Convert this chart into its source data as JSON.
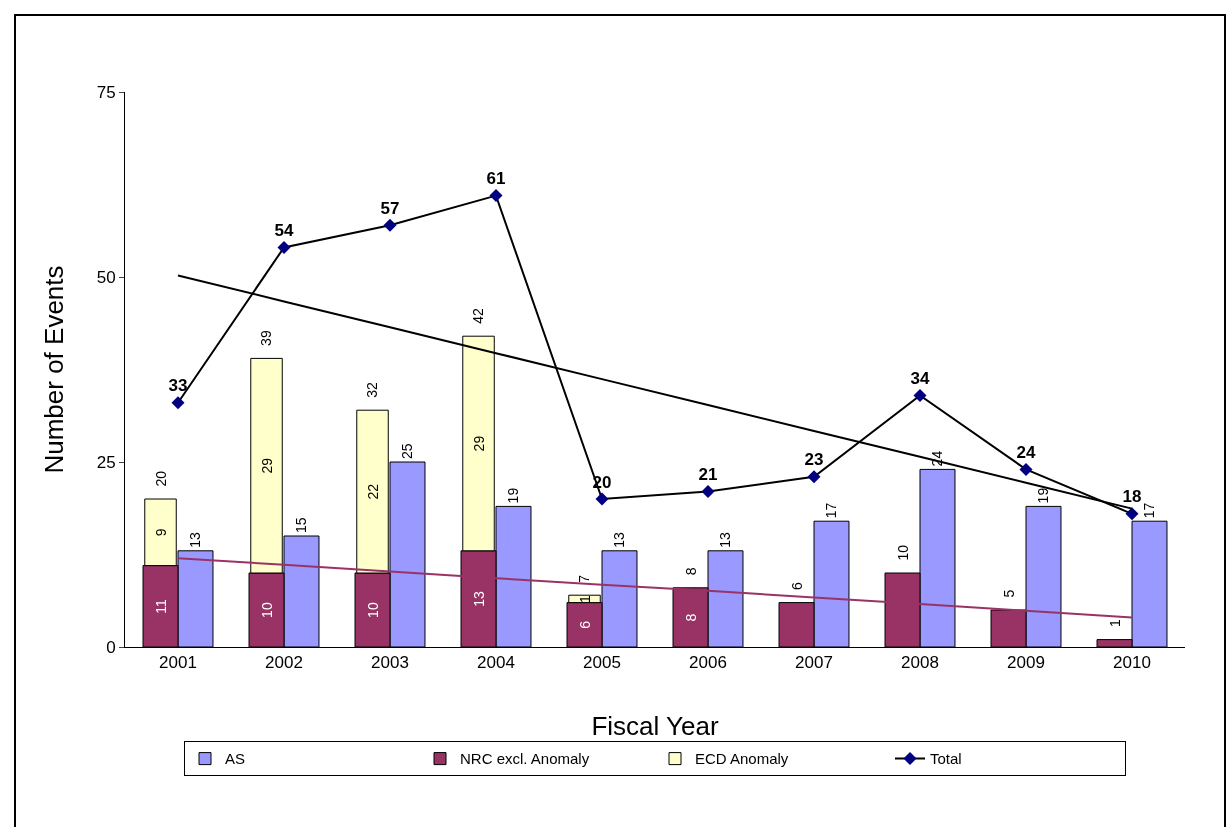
{
  "chart_data": {
    "type": "bar",
    "xlabel": "Fiscal Year",
    "ylabel": "Number of Events",
    "categories": [
      "2001",
      "2002",
      "2003",
      "2004",
      "2005",
      "2006",
      "2007",
      "2008",
      "2009",
      "2010"
    ],
    "ylim": [
      0,
      75
    ],
    "yticks": [
      0,
      25,
      50,
      75
    ],
    "grid": false,
    "legend": "bottom",
    "series": [
      {
        "name": "AS",
        "color": "#9999ff",
        "values": [
          13,
          15,
          25,
          19,
          13,
          13,
          17,
          24,
          19,
          17
        ],
        "value_labels": [
          "13",
          "15",
          "25",
          "19",
          "13",
          "13",
          "17",
          "24",
          "19",
          "17"
        ]
      },
      {
        "name": "NRC excl. Anomaly",
        "color": "#993366",
        "values": [
          11,
          10,
          10,
          13,
          6,
          8,
          6,
          10,
          5,
          1
        ],
        "value_labels": [
          "11",
          "10",
          "10",
          "13",
          "6",
          "8",
          null,
          null,
          null,
          null
        ]
      },
      {
        "name": "ECD Anomaly",
        "color": "#ffffcc",
        "base": [
          11,
          10,
          10,
          13,
          6,
          null,
          null,
          null,
          null,
          null
        ],
        "values": [
          9,
          29,
          22,
          29,
          1,
          null,
          null,
          null,
          null,
          null
        ],
        "value_labels": [
          "9",
          "29",
          "22",
          "29",
          "1",
          null,
          null,
          null,
          null,
          null
        ]
      },
      {
        "name": "Total",
        "type": "line",
        "color": "#000080",
        "marker": "diamond",
        "values": [
          33,
          54,
          57,
          61,
          20,
          21,
          23,
          34,
          24,
          18
        ],
        "value_labels": [
          "33",
          "54",
          "57",
          "61",
          "20",
          "21",
          "23",
          "34",
          "24",
          "18"
        ]
      },
      {
        "type": "line",
        "color": "#000000",
        "marker": "none",
        "values": [
          50.2,
          46.7,
          43.2,
          39.7,
          36.2,
          32.7,
          29.2,
          25.7,
          22.2,
          18.7
        ]
      },
      {
        "type": "line",
        "color": "#993366",
        "marker": "none",
        "values": [
          12,
          11.1,
          10.2,
          9.3,
          8.4,
          7.6,
          6.7,
          5.8,
          4.9,
          4.0
        ]
      }
    ],
    "annotations": [
      {
        "text": "20",
        "x": "2001",
        "y": 20
      },
      {
        "text": "39",
        "x": "2002",
        "y": 39
      },
      {
        "text": "32",
        "x": "2003",
        "y": 32
      },
      {
        "text": "42",
        "x": "2004",
        "y": 42
      },
      {
        "text": "7",
        "x": "2005",
        "y": 7
      },
      {
        "text": "8",
        "x": "2006",
        "y": 8
      },
      {
        "text": "6",
        "x": "2007",
        "y": 6
      },
      {
        "text": "10",
        "x": "2008",
        "y": 10
      },
      {
        "text": "5",
        "x": "2009",
        "y": 5
      },
      {
        "text": "1",
        "x": "2010",
        "y": 1
      }
    ]
  }
}
